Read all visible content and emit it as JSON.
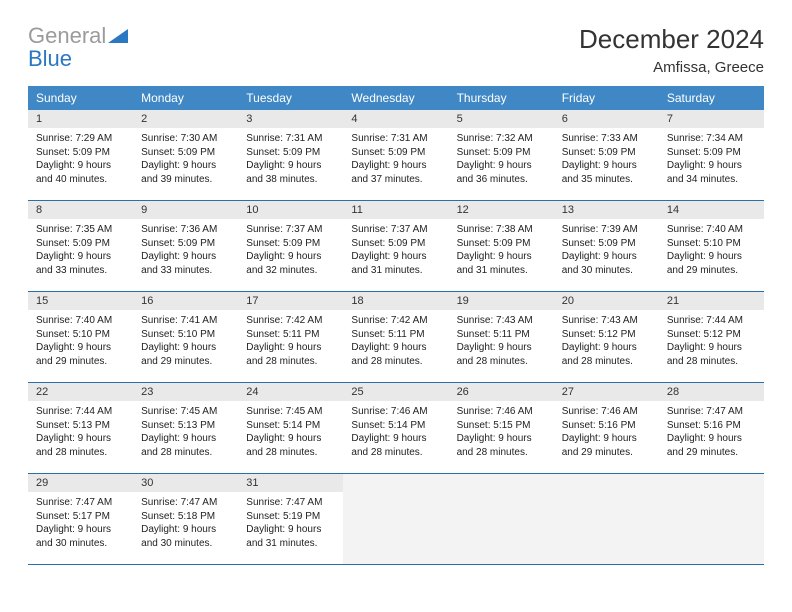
{
  "brand": {
    "line1": "General",
    "line2": "Blue",
    "gray_color": "#9b9b9b",
    "blue_color": "#2b78c2"
  },
  "header": {
    "title": "December 2024",
    "subtitle": "Amfissa, Greece"
  },
  "theme": {
    "header_bg": "#3f88c5",
    "header_text": "#ffffff",
    "daynum_bg": "#e9e9e9",
    "border_color": "#2b6fa8",
    "empty_bg": "#f3f3f3",
    "body_text": "#222222",
    "title_fontsize": 26,
    "subtitle_fontsize": 15,
    "head_fontsize": 12,
    "cell_fontsize": 10
  },
  "weekdays": [
    "Sunday",
    "Monday",
    "Tuesday",
    "Wednesday",
    "Thursday",
    "Friday",
    "Saturday"
  ],
  "weeks": [
    [
      {
        "n": "1",
        "sr": "Sunrise: 7:29 AM",
        "ss": "Sunset: 5:09 PM",
        "d1": "Daylight: 9 hours",
        "d2": "and 40 minutes."
      },
      {
        "n": "2",
        "sr": "Sunrise: 7:30 AM",
        "ss": "Sunset: 5:09 PM",
        "d1": "Daylight: 9 hours",
        "d2": "and 39 minutes."
      },
      {
        "n": "3",
        "sr": "Sunrise: 7:31 AM",
        "ss": "Sunset: 5:09 PM",
        "d1": "Daylight: 9 hours",
        "d2": "and 38 minutes."
      },
      {
        "n": "4",
        "sr": "Sunrise: 7:31 AM",
        "ss": "Sunset: 5:09 PM",
        "d1": "Daylight: 9 hours",
        "d2": "and 37 minutes."
      },
      {
        "n": "5",
        "sr": "Sunrise: 7:32 AM",
        "ss": "Sunset: 5:09 PM",
        "d1": "Daylight: 9 hours",
        "d2": "and 36 minutes."
      },
      {
        "n": "6",
        "sr": "Sunrise: 7:33 AM",
        "ss": "Sunset: 5:09 PM",
        "d1": "Daylight: 9 hours",
        "d2": "and 35 minutes."
      },
      {
        "n": "7",
        "sr": "Sunrise: 7:34 AM",
        "ss": "Sunset: 5:09 PM",
        "d1": "Daylight: 9 hours",
        "d2": "and 34 minutes."
      }
    ],
    [
      {
        "n": "8",
        "sr": "Sunrise: 7:35 AM",
        "ss": "Sunset: 5:09 PM",
        "d1": "Daylight: 9 hours",
        "d2": "and 33 minutes."
      },
      {
        "n": "9",
        "sr": "Sunrise: 7:36 AM",
        "ss": "Sunset: 5:09 PM",
        "d1": "Daylight: 9 hours",
        "d2": "and 33 minutes."
      },
      {
        "n": "10",
        "sr": "Sunrise: 7:37 AM",
        "ss": "Sunset: 5:09 PM",
        "d1": "Daylight: 9 hours",
        "d2": "and 32 minutes."
      },
      {
        "n": "11",
        "sr": "Sunrise: 7:37 AM",
        "ss": "Sunset: 5:09 PM",
        "d1": "Daylight: 9 hours",
        "d2": "and 31 minutes."
      },
      {
        "n": "12",
        "sr": "Sunrise: 7:38 AM",
        "ss": "Sunset: 5:09 PM",
        "d1": "Daylight: 9 hours",
        "d2": "and 31 minutes."
      },
      {
        "n": "13",
        "sr": "Sunrise: 7:39 AM",
        "ss": "Sunset: 5:09 PM",
        "d1": "Daylight: 9 hours",
        "d2": "and 30 minutes."
      },
      {
        "n": "14",
        "sr": "Sunrise: 7:40 AM",
        "ss": "Sunset: 5:10 PM",
        "d1": "Daylight: 9 hours",
        "d2": "and 29 minutes."
      }
    ],
    [
      {
        "n": "15",
        "sr": "Sunrise: 7:40 AM",
        "ss": "Sunset: 5:10 PM",
        "d1": "Daylight: 9 hours",
        "d2": "and 29 minutes."
      },
      {
        "n": "16",
        "sr": "Sunrise: 7:41 AM",
        "ss": "Sunset: 5:10 PM",
        "d1": "Daylight: 9 hours",
        "d2": "and 29 minutes."
      },
      {
        "n": "17",
        "sr": "Sunrise: 7:42 AM",
        "ss": "Sunset: 5:11 PM",
        "d1": "Daylight: 9 hours",
        "d2": "and 28 minutes."
      },
      {
        "n": "18",
        "sr": "Sunrise: 7:42 AM",
        "ss": "Sunset: 5:11 PM",
        "d1": "Daylight: 9 hours",
        "d2": "and 28 minutes."
      },
      {
        "n": "19",
        "sr": "Sunrise: 7:43 AM",
        "ss": "Sunset: 5:11 PM",
        "d1": "Daylight: 9 hours",
        "d2": "and 28 minutes."
      },
      {
        "n": "20",
        "sr": "Sunrise: 7:43 AM",
        "ss": "Sunset: 5:12 PM",
        "d1": "Daylight: 9 hours",
        "d2": "and 28 minutes."
      },
      {
        "n": "21",
        "sr": "Sunrise: 7:44 AM",
        "ss": "Sunset: 5:12 PM",
        "d1": "Daylight: 9 hours",
        "d2": "and 28 minutes."
      }
    ],
    [
      {
        "n": "22",
        "sr": "Sunrise: 7:44 AM",
        "ss": "Sunset: 5:13 PM",
        "d1": "Daylight: 9 hours",
        "d2": "and 28 minutes."
      },
      {
        "n": "23",
        "sr": "Sunrise: 7:45 AM",
        "ss": "Sunset: 5:13 PM",
        "d1": "Daylight: 9 hours",
        "d2": "and 28 minutes."
      },
      {
        "n": "24",
        "sr": "Sunrise: 7:45 AM",
        "ss": "Sunset: 5:14 PM",
        "d1": "Daylight: 9 hours",
        "d2": "and 28 minutes."
      },
      {
        "n": "25",
        "sr": "Sunrise: 7:46 AM",
        "ss": "Sunset: 5:14 PM",
        "d1": "Daylight: 9 hours",
        "d2": "and 28 minutes."
      },
      {
        "n": "26",
        "sr": "Sunrise: 7:46 AM",
        "ss": "Sunset: 5:15 PM",
        "d1": "Daylight: 9 hours",
        "d2": "and 28 minutes."
      },
      {
        "n": "27",
        "sr": "Sunrise: 7:46 AM",
        "ss": "Sunset: 5:16 PM",
        "d1": "Daylight: 9 hours",
        "d2": "and 29 minutes."
      },
      {
        "n": "28",
        "sr": "Sunrise: 7:47 AM",
        "ss": "Sunset: 5:16 PM",
        "d1": "Daylight: 9 hours",
        "d2": "and 29 minutes."
      }
    ],
    [
      {
        "n": "29",
        "sr": "Sunrise: 7:47 AM",
        "ss": "Sunset: 5:17 PM",
        "d1": "Daylight: 9 hours",
        "d2": "and 30 minutes."
      },
      {
        "n": "30",
        "sr": "Sunrise: 7:47 AM",
        "ss": "Sunset: 5:18 PM",
        "d1": "Daylight: 9 hours",
        "d2": "and 30 minutes."
      },
      {
        "n": "31",
        "sr": "Sunrise: 7:47 AM",
        "ss": "Sunset: 5:19 PM",
        "d1": "Daylight: 9 hours",
        "d2": "and 31 minutes."
      },
      null,
      null,
      null,
      null
    ]
  ]
}
